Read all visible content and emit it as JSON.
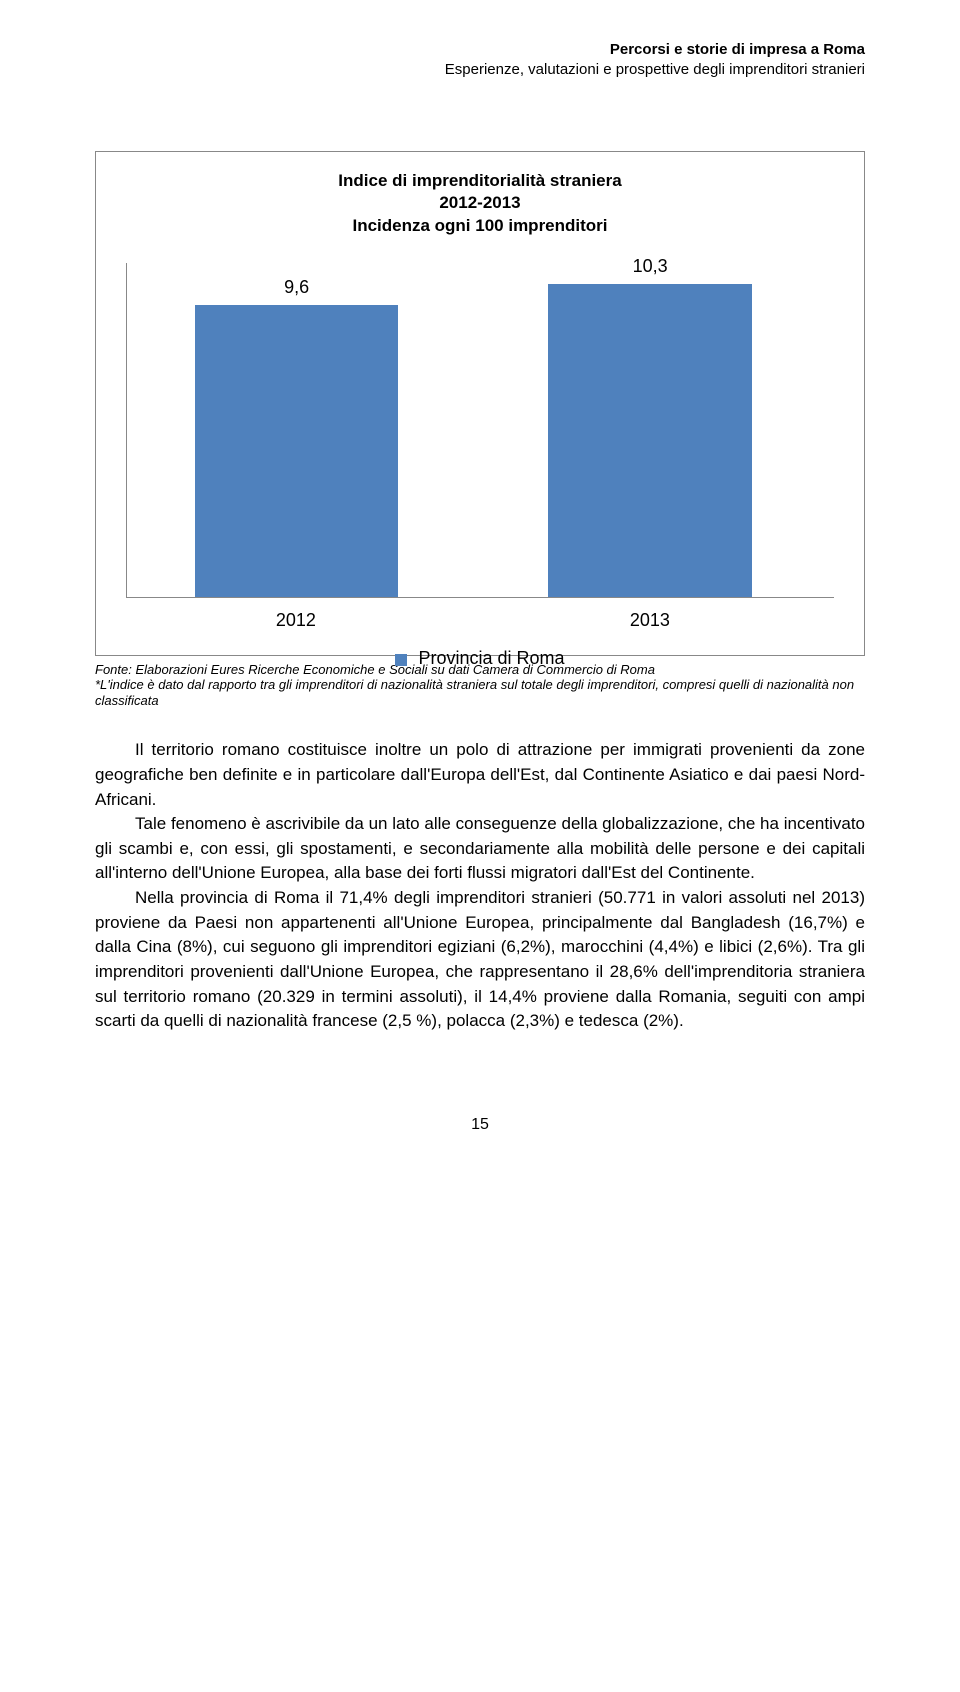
{
  "header": {
    "title": "Percorsi e storie di impresa a Roma",
    "subtitle": "Esperienze, valutazioni e prospettive degli imprenditori stranieri"
  },
  "chart": {
    "type": "bar",
    "title_line1": "Indice di imprenditorialità straniera",
    "title_line2": "2012-2013",
    "title_line3": "Incidenza ogni 100 imprenditori",
    "categories": [
      "2012",
      "2013"
    ],
    "values": [
      9.6,
      10.3
    ],
    "value_labels": [
      "9,6",
      "10,3"
    ],
    "ymax": 11,
    "bar_color": "#4f81bd",
    "legend_label": "Provincia di Roma",
    "border_color": "#888888",
    "background_color": "#ffffff",
    "label_fontsize": 18
  },
  "footnote": {
    "line1": "Fonte: Elaborazioni Eures Ricerche Economiche e Sociali su dati Camera di Commercio di Roma",
    "line2": "*L'indice è dato dal rapporto tra gli imprenditori di nazionalità straniera sul totale degli imprenditori, compresi quelli di nazionalità non classificata"
  },
  "body": {
    "p1": "Il territorio romano costituisce inoltre un polo di attrazione per immigrati provenienti da zone geografiche ben definite e in particolare dall'Europa dell'Est, dal Continente Asiatico e dai paesi Nord-Africani.",
    "p2": "Tale fenomeno è ascrivibile da un lato alle conseguenze della globalizzazione, che ha incentivato gli scambi e, con essi, gli spostamenti, e secondariamente alla mobilità delle persone e dei capitali all'interno dell'Unione Europea, alla base dei forti flussi migratori dall'Est del Continente.",
    "p3": "Nella provincia di Roma il 71,4% degli imprenditori stranieri (50.771 in valori assoluti nel 2013) proviene da Paesi non appartenenti all'Unione Europea, principalmente dal Bangladesh (16,7%) e dalla Cina (8%), cui seguono gli imprenditori egiziani (6,2%), marocchini (4,4%) e libici (2,6%). Tra gli imprenditori provenienti dall'Unione Europea, che rappresentano il 28,6% dell'imprenditoria straniera sul territorio romano (20.329 in termini assoluti), il 14,4% proviene dalla Romania, seguiti con ampi scarti da quelli di nazionalità francese (2,5 %), polacca (2,3%) e tedesca (2%)."
  },
  "page": "15"
}
